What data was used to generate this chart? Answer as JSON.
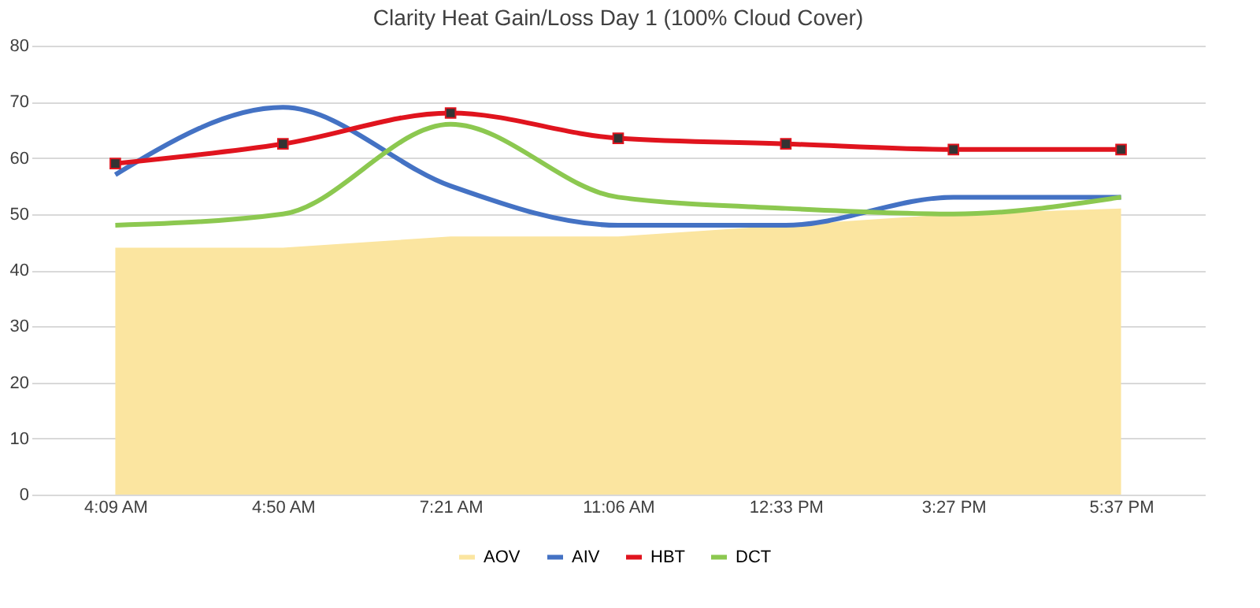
{
  "chart_data": {
    "type": "line",
    "title": "Clarity Heat Gain/Loss Day 1 (100% Cloud Cover)",
    "categories": [
      "4:09 AM",
      "4:50 AM",
      "7:21 AM",
      "11:06 AM",
      "12:33 PM",
      "3:27 PM",
      "5:37 PM"
    ],
    "series": [
      {
        "name": "AOV",
        "type": "area",
        "color": "#fbe5a0",
        "values": [
          44,
          44,
          46,
          46,
          48,
          50,
          51
        ]
      },
      {
        "name": "AIV",
        "type": "line",
        "color": "#4472c4",
        "values": [
          57,
          69,
          55,
          48,
          48,
          53,
          53
        ]
      },
      {
        "name": "HBT",
        "type": "line",
        "color": "#e0141e",
        "marker": "square",
        "values": [
          59,
          62.5,
          68,
          63.5,
          62.5,
          61.5,
          61.5
        ]
      },
      {
        "name": "DCT",
        "type": "line",
        "color": "#8cc850",
        "values": [
          48,
          50,
          66,
          53,
          51,
          50,
          53
        ]
      }
    ],
    "ylim": [
      0,
      80
    ],
    "yticks": [
      0,
      10,
      20,
      30,
      40,
      50,
      60,
      70,
      80
    ],
    "grid": "y",
    "legend": "bottom"
  }
}
